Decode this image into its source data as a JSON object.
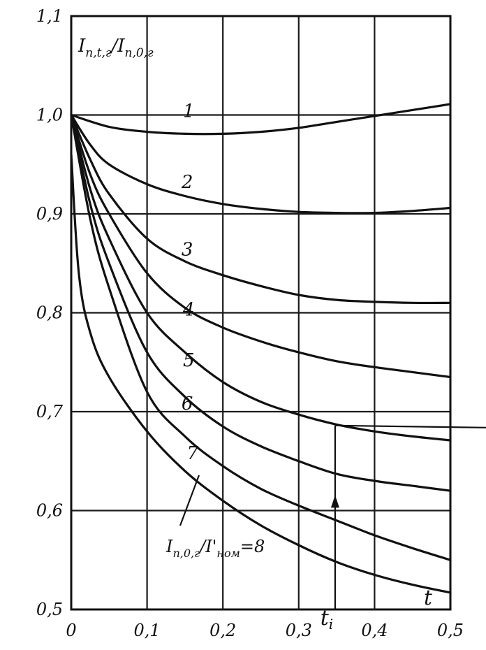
{
  "chart_data": {
    "type": "line",
    "ylabel": "I_{п,t,г}/I_{п,0,г}",
    "xlabel": "t",
    "xlim": [
      0,
      0.5
    ],
    "ylim": [
      0.5,
      1.1
    ],
    "grid": true,
    "x_ticks": [
      "0",
      "0,1",
      "0,2",
      "0,3",
      "0,4",
      "0,5"
    ],
    "y_ticks": [
      "0,5",
      "0,6",
      "0,7",
      "0,8",
      "0,9",
      "1,0",
      "1,1"
    ],
    "series": [
      {
        "name": "1",
        "points": [
          [
            0,
            1.0
          ],
          [
            0.05,
            0.988
          ],
          [
            0.1,
            0.983
          ],
          [
            0.15,
            0.981
          ],
          [
            0.2,
            0.981
          ],
          [
            0.25,
            0.983
          ],
          [
            0.3,
            0.987
          ],
          [
            0.35,
            0.993
          ],
          [
            0.4,
            0.999
          ],
          [
            0.45,
            1.005
          ],
          [
            0.5,
            1.011
          ]
        ]
      },
      {
        "name": "2",
        "points": [
          [
            0,
            1.0
          ],
          [
            0.025,
            0.97
          ],
          [
            0.05,
            0.95
          ],
          [
            0.1,
            0.93
          ],
          [
            0.15,
            0.918
          ],
          [
            0.2,
            0.91
          ],
          [
            0.25,
            0.905
          ],
          [
            0.3,
            0.902
          ],
          [
            0.35,
            0.901
          ],
          [
            0.4,
            0.901
          ],
          [
            0.45,
            0.903
          ],
          [
            0.5,
            0.906
          ]
        ]
      },
      {
        "name": "3",
        "points": [
          [
            0,
            1.0
          ],
          [
            0.025,
            0.955
          ],
          [
            0.05,
            0.92
          ],
          [
            0.1,
            0.875
          ],
          [
            0.15,
            0.852
          ],
          [
            0.2,
            0.838
          ],
          [
            0.25,
            0.827
          ],
          [
            0.3,
            0.818
          ],
          [
            0.35,
            0.813
          ],
          [
            0.4,
            0.811
          ],
          [
            0.45,
            0.81
          ],
          [
            0.5,
            0.81
          ]
        ]
      },
      {
        "name": "4",
        "points": [
          [
            0,
            1.0
          ],
          [
            0.025,
            0.94
          ],
          [
            0.05,
            0.9
          ],
          [
            0.1,
            0.84
          ],
          [
            0.15,
            0.805
          ],
          [
            0.2,
            0.785
          ],
          [
            0.25,
            0.771
          ],
          [
            0.3,
            0.76
          ],
          [
            0.35,
            0.751
          ],
          [
            0.4,
            0.745
          ],
          [
            0.45,
            0.74
          ],
          [
            0.5,
            0.735
          ]
        ]
      },
      {
        "name": "5",
        "points": [
          [
            0,
            1.0
          ],
          [
            0.025,
            0.925
          ],
          [
            0.05,
            0.875
          ],
          [
            0.1,
            0.8
          ],
          [
            0.15,
            0.76
          ],
          [
            0.2,
            0.73
          ],
          [
            0.25,
            0.71
          ],
          [
            0.3,
            0.697
          ],
          [
            0.35,
            0.687
          ],
          [
            0.4,
            0.68
          ],
          [
            0.45,
            0.675
          ],
          [
            0.5,
            0.671
          ]
        ]
      },
      {
        "name": "6",
        "points": [
          [
            0,
            1.0
          ],
          [
            0.025,
            0.91
          ],
          [
            0.05,
            0.85
          ],
          [
            0.1,
            0.76
          ],
          [
            0.15,
            0.715
          ],
          [
            0.2,
            0.685
          ],
          [
            0.25,
            0.665
          ],
          [
            0.3,
            0.65
          ],
          [
            0.35,
            0.637
          ],
          [
            0.4,
            0.63
          ],
          [
            0.45,
            0.625
          ],
          [
            0.5,
            0.62
          ]
        ]
      },
      {
        "name": "7",
        "points": [
          [
            0,
            1.0
          ],
          [
            0.025,
            0.895
          ],
          [
            0.05,
            0.825
          ],
          [
            0.1,
            0.72
          ],
          [
            0.15,
            0.675
          ],
          [
            0.2,
            0.645
          ],
          [
            0.25,
            0.622
          ],
          [
            0.3,
            0.605
          ],
          [
            0.35,
            0.59
          ],
          [
            0.4,
            0.575
          ],
          [
            0.45,
            0.562
          ],
          [
            0.5,
            0.55
          ]
        ]
      },
      {
        "name": "I_{п,0,г}/I'_{ном}=8",
        "points": [
          [
            0,
            0.96
          ],
          [
            0.01,
            0.84
          ],
          [
            0.025,
            0.78
          ],
          [
            0.05,
            0.735
          ],
          [
            0.1,
            0.68
          ],
          [
            0.15,
            0.64
          ],
          [
            0.2,
            0.61
          ],
          [
            0.25,
            0.585
          ],
          [
            0.3,
            0.565
          ],
          [
            0.35,
            0.548
          ],
          [
            0.4,
            0.535
          ],
          [
            0.45,
            0.525
          ],
          [
            0.5,
            0.517
          ]
        ]
      }
    ],
    "curve_labels": [
      {
        "text": "1",
        "x": 0.155,
        "y": 0.998
      },
      {
        "text": "2",
        "x": 0.153,
        "y": 0.926
      },
      {
        "text": "3",
        "x": 0.153,
        "y": 0.858
      },
      {
        "text": "4",
        "x": 0.155,
        "y": 0.797
      },
      {
        "text": "5",
        "x": 0.155,
        "y": 0.746
      },
      {
        "text": "6",
        "x": 0.153,
        "y": 0.702
      },
      {
        "text": "7",
        "x": 0.16,
        "y": 0.652
      }
    ],
    "annotations": {
      "t_i_label": "t_i",
      "t_i_x": 0.348,
      "arrow_y": 0.686
    }
  }
}
